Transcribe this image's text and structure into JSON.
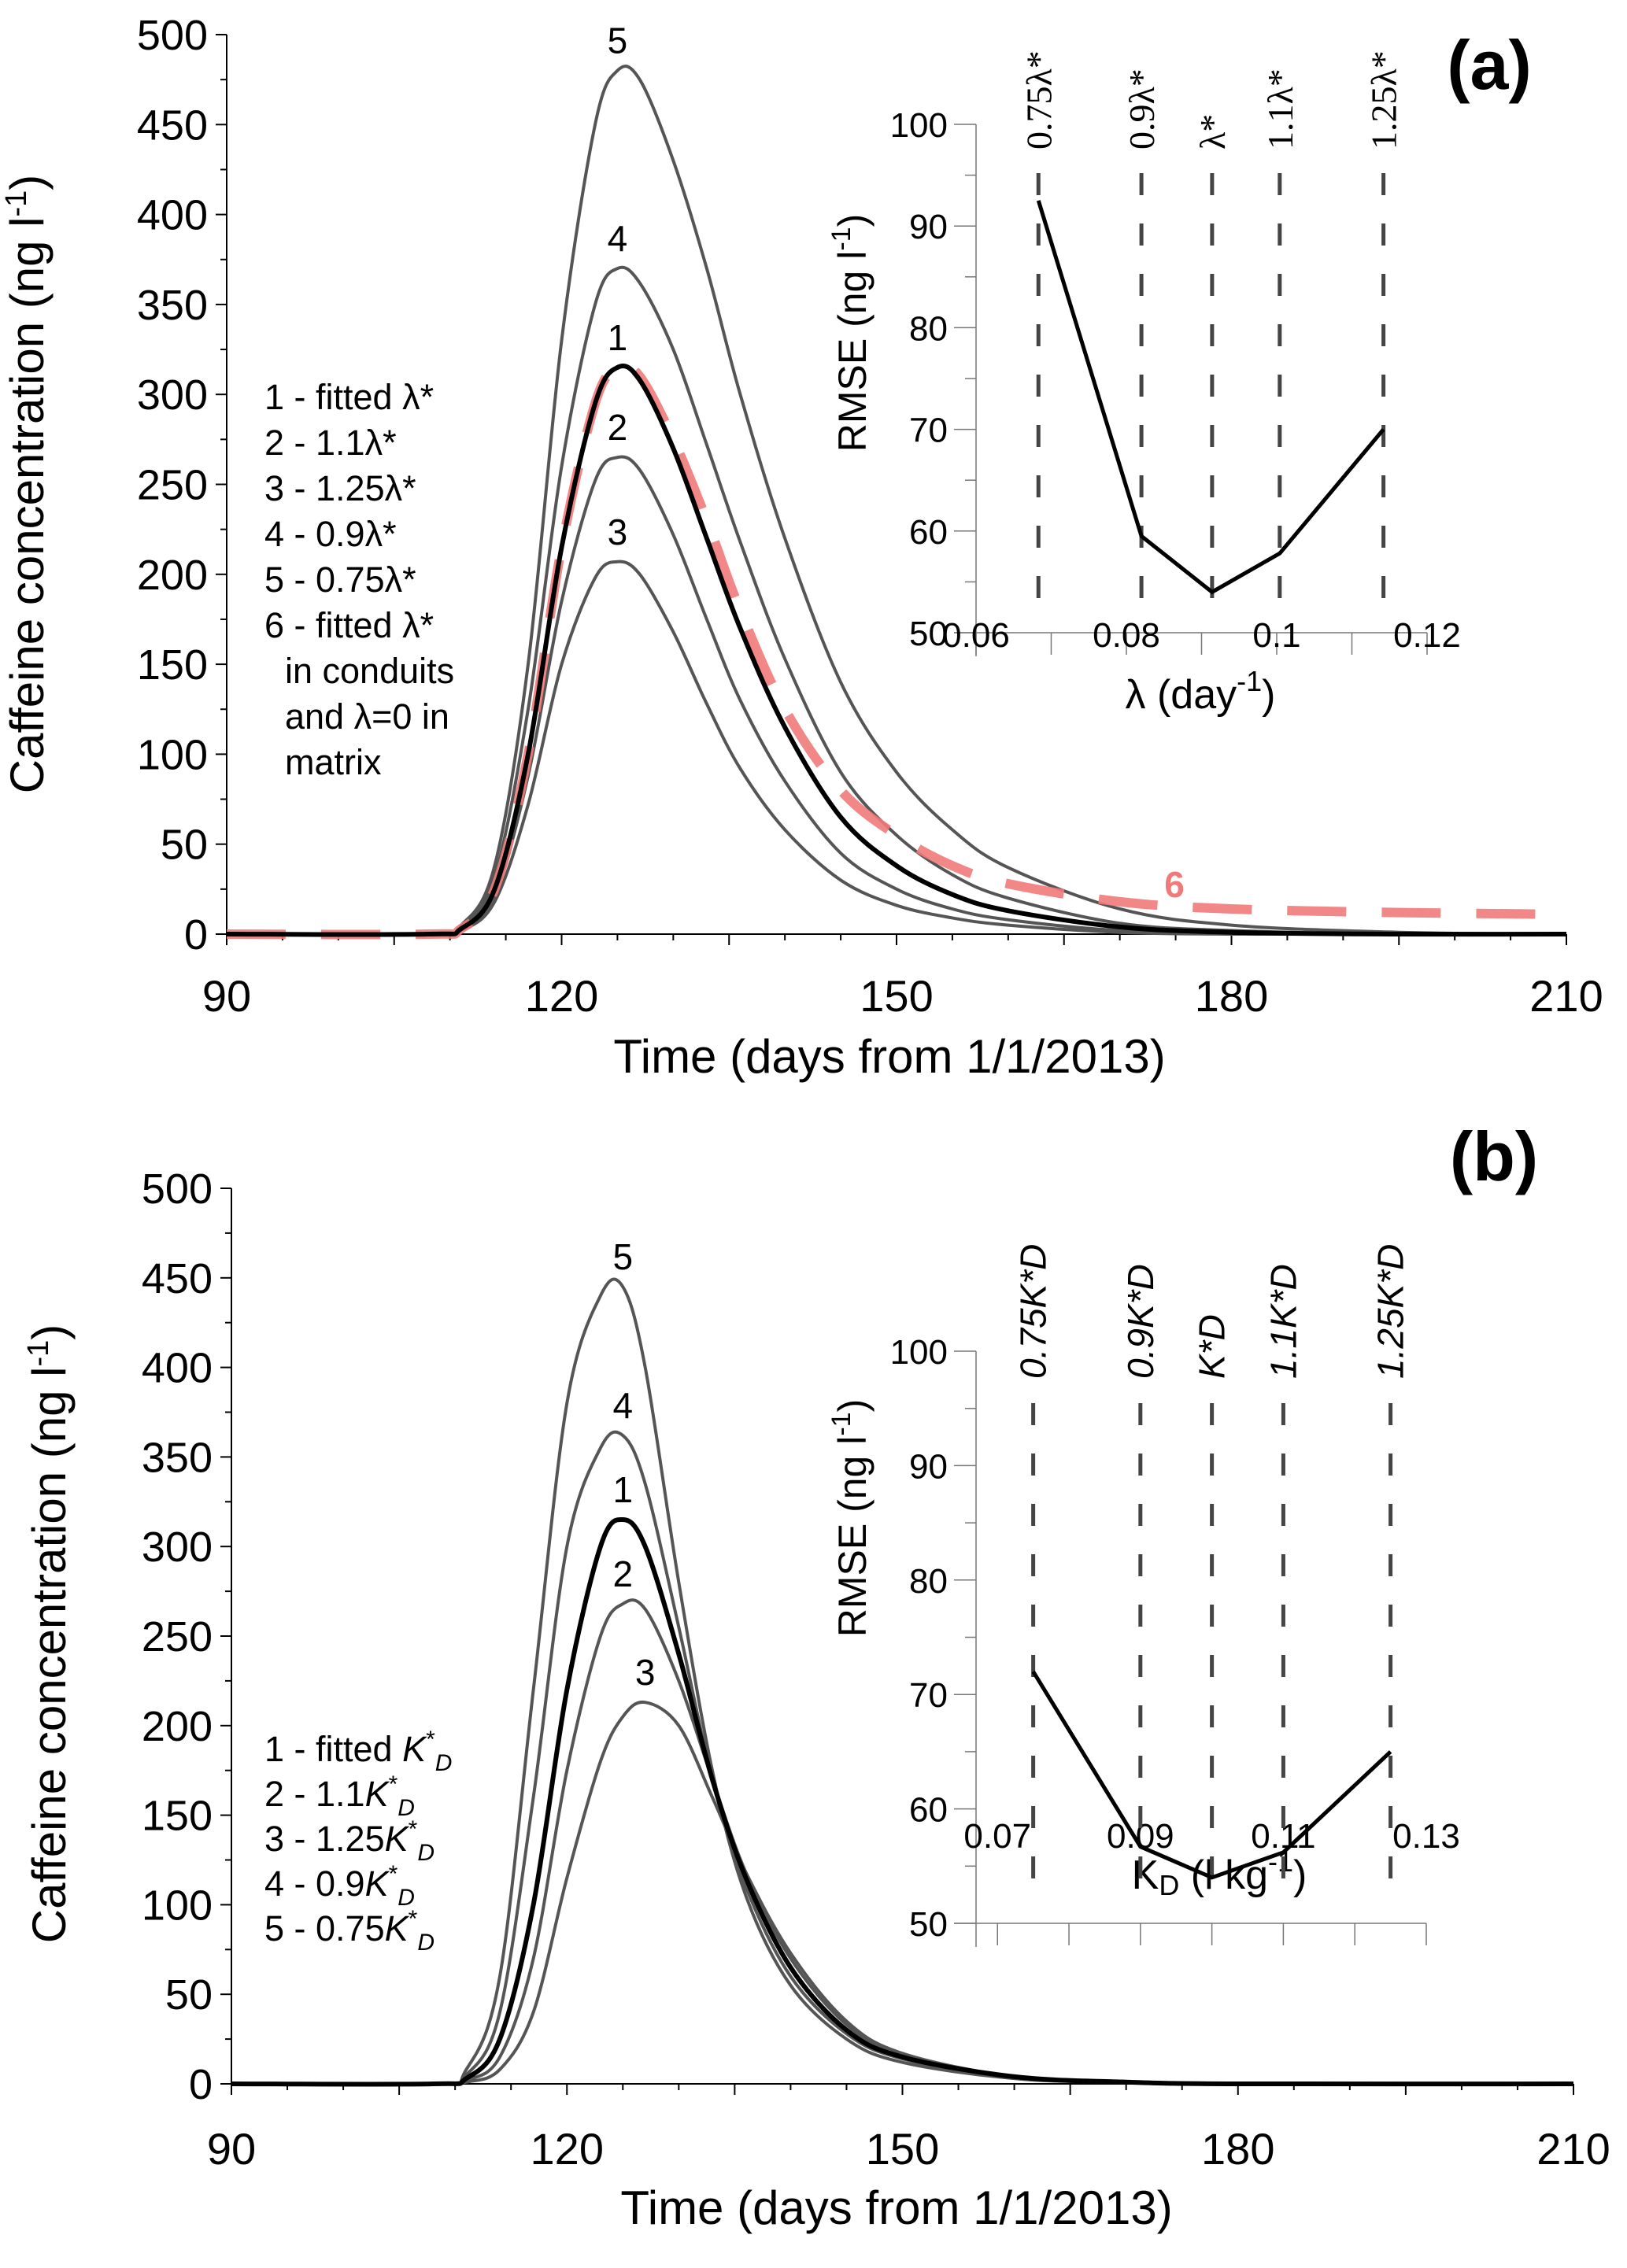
{
  "chart_data": [
    {
      "type": "line",
      "panel_label": "(a)",
      "xlabel": "Time (days from 1/1/2013)",
      "ylabel": "Caffeine concentration (ng l",
      "ylabel_sup": "-1",
      "ylabel_end": ")",
      "xlim": [
        90,
        210
      ],
      "ylim": [
        0,
        500
      ],
      "xticks": [
        "90",
        "120",
        "150",
        "180",
        "210"
      ],
      "yticks": [
        "0",
        "50",
        "100",
        "150",
        "200",
        "250",
        "300",
        "350",
        "400",
        "450",
        "500"
      ],
      "x": [
        90,
        108,
        111,
        114,
        117,
        120,
        123,
        125,
        127,
        130,
        133,
        136,
        140,
        145,
        150,
        155,
        160,
        170,
        180,
        195,
        210
      ],
      "series": [
        {
          "name": "5",
          "style": "gray",
          "values": [
            0,
            0,
            5,
            38,
            150,
            330,
            450,
            480,
            475,
            430,
            370,
            300,
            220,
            140,
            90,
            58,
            37,
            14,
            5,
            1,
            0
          ]
        },
        {
          "name": "4",
          "style": "gray",
          "values": [
            0,
            0,
            4,
            32,
            125,
            260,
            350,
            370,
            362,
            325,
            272,
            218,
            153,
            90,
            55,
            33,
            20,
            6,
            2,
            0,
            0
          ]
        },
        {
          "name": "2",
          "style": "gray",
          "values": [
            0,
            0,
            3,
            22,
            88,
            185,
            252,
            265,
            258,
            222,
            175,
            130,
            85,
            45,
            25,
            14,
            8,
            2,
            1,
            0,
            0
          ]
        },
        {
          "name": "3",
          "style": "gray",
          "values": [
            0,
            0,
            2,
            18,
            72,
            150,
            198,
            207,
            200,
            168,
            128,
            92,
            58,
            30,
            16,
            9,
            5,
            1,
            0,
            0,
            0
          ]
        },
        {
          "name": "6",
          "style": "red-dashed",
          "values": [
            0,
            0,
            3,
            25,
            100,
            215,
            295,
            315,
            310,
            275,
            230,
            180,
            125,
            80,
            55,
            38,
            28,
            18,
            14,
            12,
            11
          ]
        },
        {
          "name": "1",
          "style": "black",
          "values": [
            0,
            0,
            3,
            25,
            100,
            215,
            295,
            315,
            308,
            270,
            220,
            170,
            115,
            65,
            38,
            22,
            13,
            4,
            1,
            0,
            0
          ]
        }
      ],
      "legend": [
        "1 - fitted λ*",
        "2 - 1.1λ*",
        "3 - 1.25λ*",
        "4 - 0.9λ*",
        "5 - 0.75λ*",
        "6 - fitted λ*",
        "in conduits",
        "and λ=0 in",
        "matrix"
      ],
      "inset": {
        "xlabel": "λ (day",
        "xlabel_sup": "-1",
        "xlabel_end": ")",
        "ylabel": "RMSE (ng l",
        "ylabel_sup": "-1",
        "ylabel_end": ")",
        "xlim": [
          0.06,
          0.12
        ],
        "ylim": [
          50,
          100
        ],
        "xticks": [
          "0.06",
          "0.08",
          "0.1",
          "0.12"
        ],
        "yticks": [
          "50",
          "60",
          "70",
          "80",
          "90",
          "100"
        ],
        "x": [
          0.0683,
          0.082,
          0.0914,
          0.1004,
          0.1142
        ],
        "values": [
          92.5,
          59.5,
          54.0,
          57.8,
          70.0
        ],
        "markers": [
          "0.75λ*",
          "0.9λ*",
          "λ*",
          "1.1λ*",
          "1.25λ*"
        ]
      }
    },
    {
      "type": "line",
      "panel_label": "(b)",
      "xlabel": "Time (days from 1/1/2013)",
      "ylabel": "Caffeine concentration (ng l",
      "ylabel_sup": "-1",
      "ylabel_end": ")",
      "xlim": [
        90,
        210
      ],
      "ylim": [
        0,
        500
      ],
      "xticks": [
        "90",
        "120",
        "150",
        "180",
        "210"
      ],
      "yticks": [
        "0",
        "50",
        "100",
        "150",
        "200",
        "250",
        "300",
        "350",
        "400",
        "450",
        "500"
      ],
      "x": [
        90,
        108,
        111,
        114,
        117,
        120,
        123,
        125,
        127,
        130,
        133,
        136,
        140,
        145,
        150,
        160,
        170,
        180,
        210
      ],
      "series": [
        {
          "name": "5",
          "style": "gray",
          "values": [
            0,
            0,
            8,
            60,
            220,
            380,
            440,
            445,
            400,
            280,
            175,
            105,
            55,
            25,
            12,
            3,
            1,
            0,
            0
          ]
        },
        {
          "name": "4",
          "style": "gray",
          "values": [
            0,
            0,
            5,
            40,
            160,
            300,
            355,
            362,
            335,
            255,
            170,
            110,
            60,
            28,
            14,
            3,
            1,
            0,
            0
          ]
        },
        {
          "name": "2",
          "style": "gray",
          "values": [
            0,
            0,
            2,
            15,
            70,
            175,
            250,
            268,
            265,
            225,
            170,
            118,
            70,
            33,
            16,
            4,
            1,
            0,
            0
          ]
        },
        {
          "name": "3",
          "style": "gray",
          "values": [
            0,
            0,
            1,
            8,
            40,
            115,
            180,
            205,
            213,
            200,
            160,
            118,
            73,
            35,
            17,
            4,
            1,
            0,
            0
          ]
        },
        {
          "name": "1",
          "style": "black",
          "values": [
            0,
            0,
            3,
            25,
            100,
            220,
            300,
            315,
            300,
            240,
            170,
            115,
            65,
            30,
            15,
            4,
            1,
            0,
            0
          ]
        }
      ],
      "legend": [
        {
          "prefix": "1 - fitted ",
          "sym": "K",
          "sup": "*",
          "sub": "D"
        },
        {
          "prefix": "2 - 1.1",
          "sym": "K",
          "sup": "*",
          "sub": "D"
        },
        {
          "prefix": "3 - 1.25",
          "sym": "K",
          "sup": "*",
          "sub": "D"
        },
        {
          "prefix": "4 - 0.9",
          "sym": "K",
          "sup": "*",
          "sub": "D"
        },
        {
          "prefix": "5 - 0.75",
          "sym": "K",
          "sup": "*",
          "sub": "D"
        }
      ],
      "inset": {
        "xlabel": "K",
        "xlabel_sub": "D",
        "xlabel_mid": " (l kg",
        "xlabel_sup": "-1",
        "xlabel_end": ")",
        "ylabel": "RMSE (ng l",
        "ylabel_sup": "-1",
        "ylabel_end": ")",
        "xlim": [
          0.067,
          0.13
        ],
        "ylim": [
          50,
          100
        ],
        "xticks": [
          "0.07",
          "0.09",
          "0.11",
          "0.13"
        ],
        "xtick_values": [
          0.07,
          0.09,
          0.11,
          0.13
        ],
        "yticks": [
          "50",
          "60",
          "70",
          "80",
          "90",
          "100"
        ],
        "x": [
          0.075,
          0.09,
          0.1,
          0.11,
          0.125
        ],
        "values": [
          72.0,
          56.7,
          54.0,
          56.2,
          65.0
        ],
        "markers": [
          "0.75K*D",
          "0.9K*D",
          "K*D",
          "1.1K*D",
          "1.25K*D"
        ]
      }
    }
  ],
  "colors": {
    "gray": "#555555",
    "black": "#000000",
    "red": "#f07a7a",
    "dash": "#444444"
  }
}
